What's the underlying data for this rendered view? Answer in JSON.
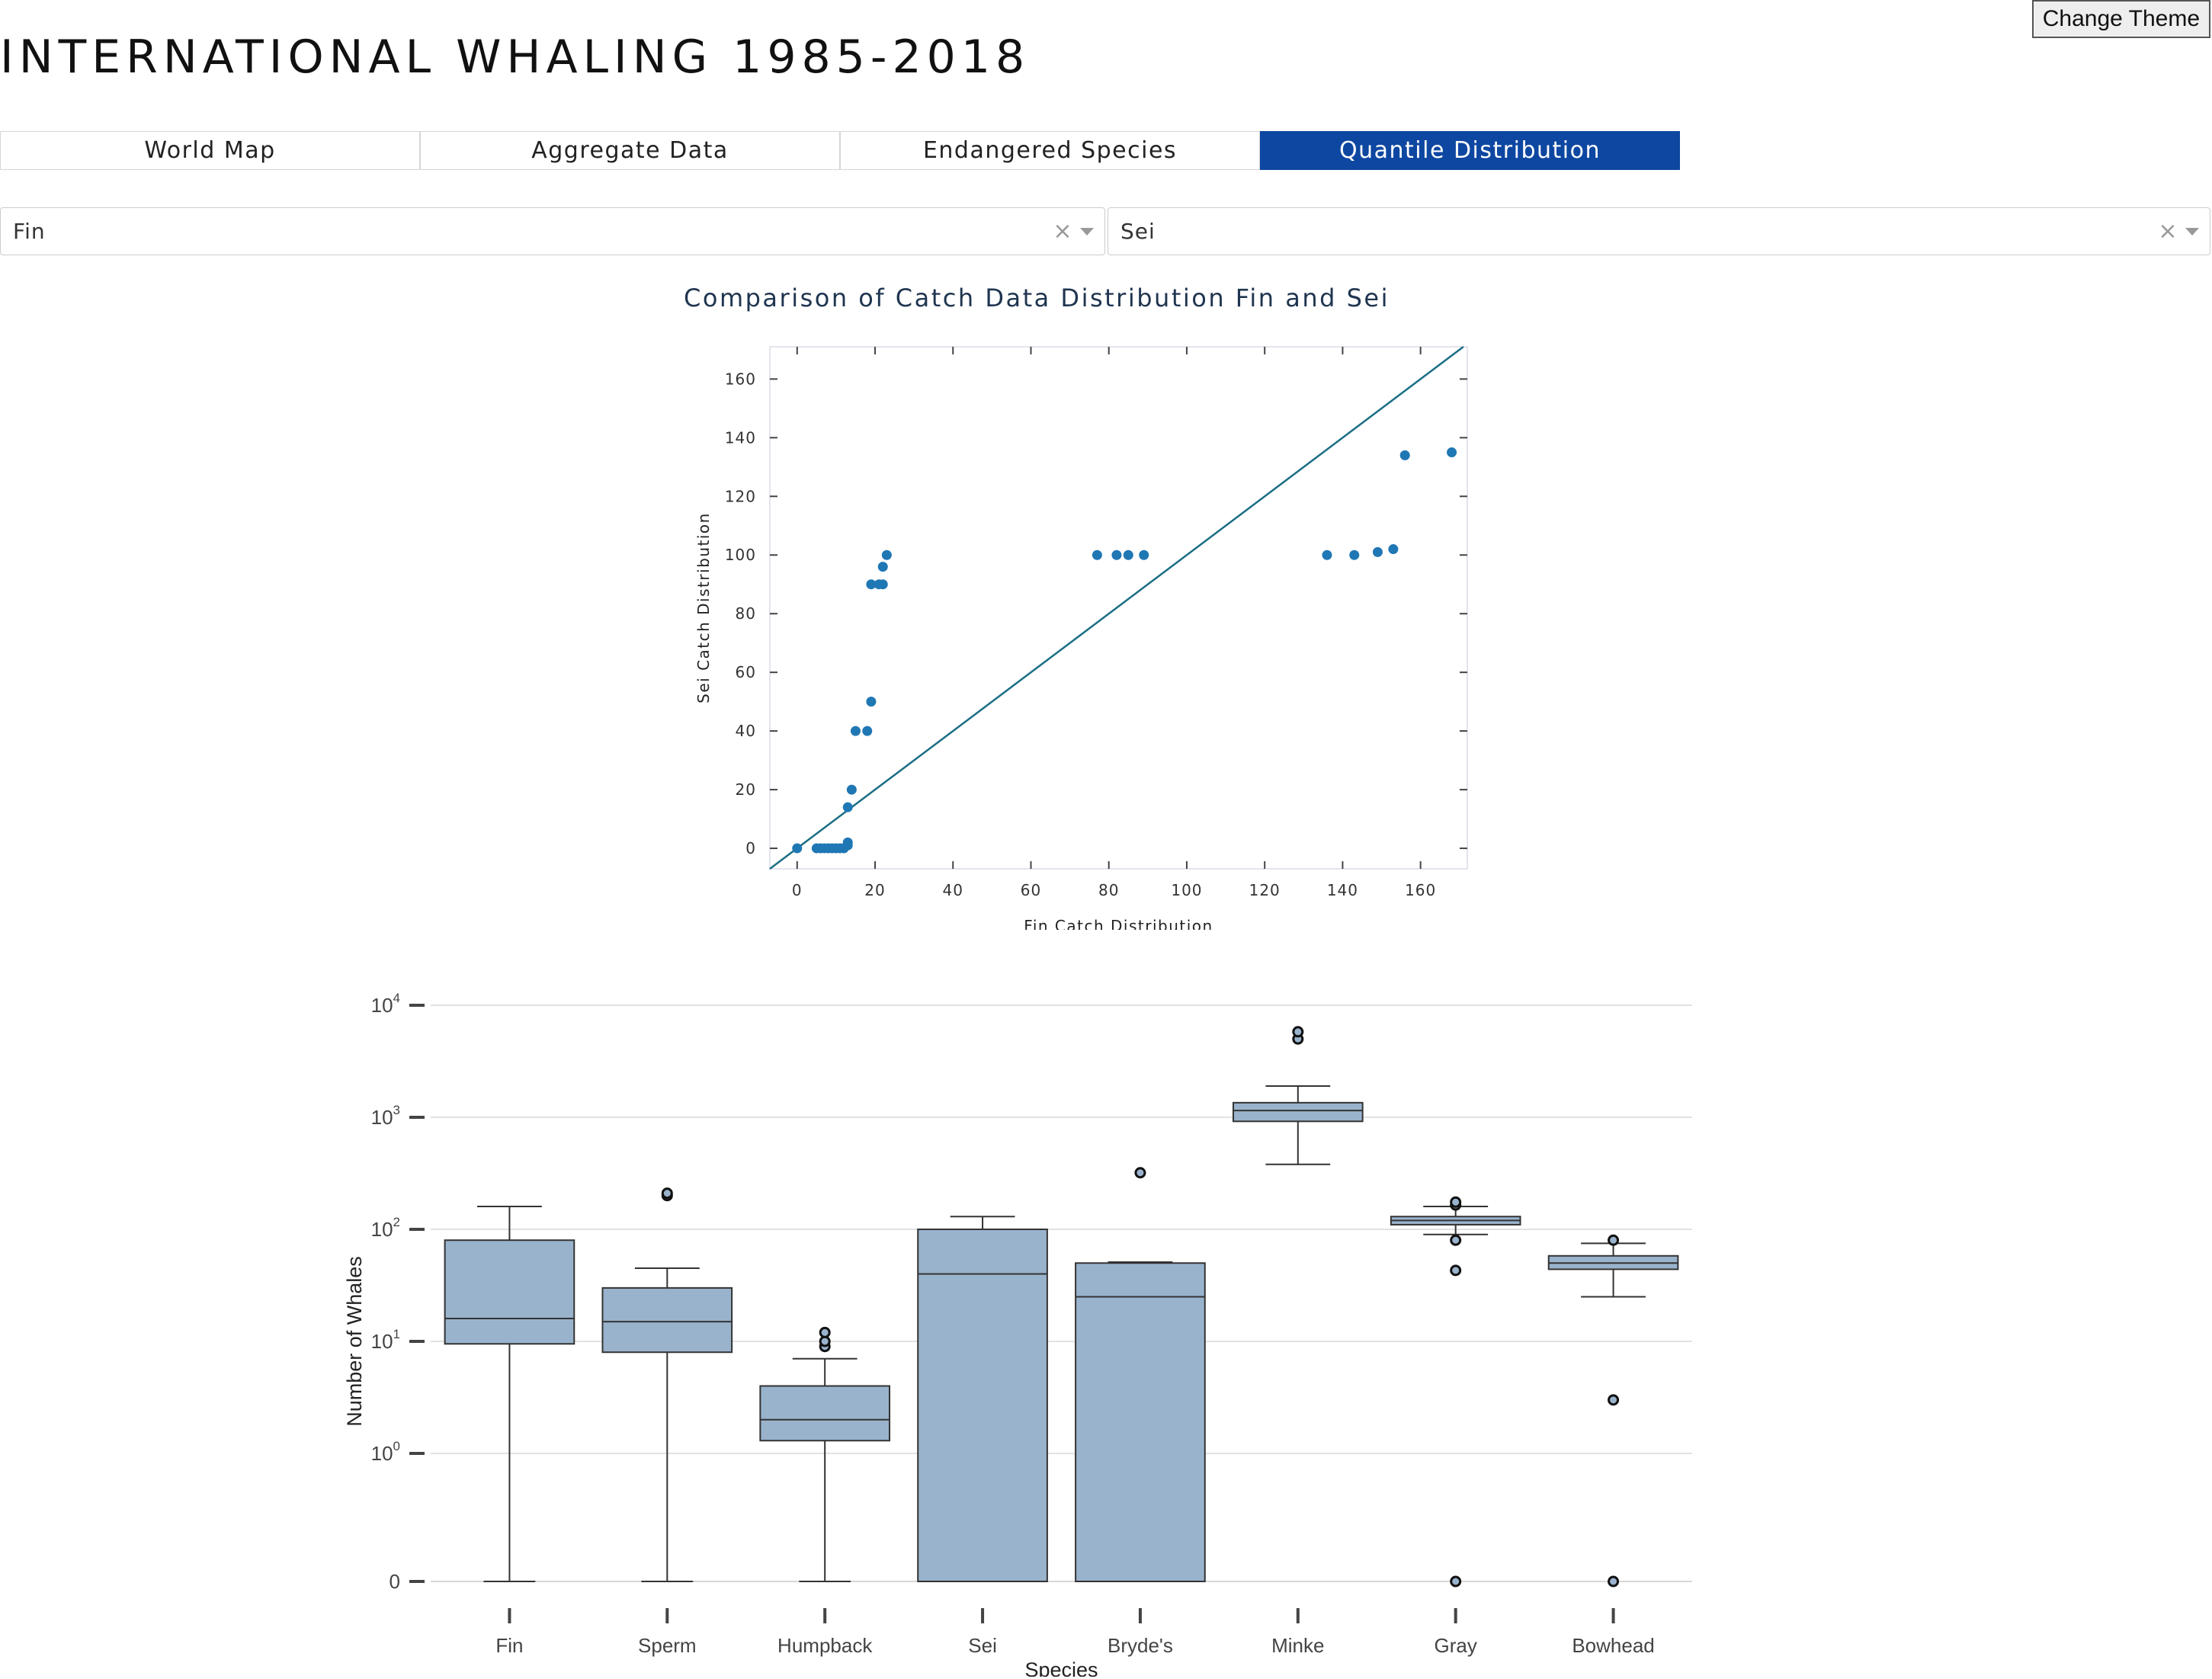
{
  "app": {
    "title": "INTERNATIONAL WHALING 1985-2018",
    "theme_button": "Change Theme"
  },
  "tabs": [
    {
      "label": "World Map",
      "active": false
    },
    {
      "label": "Aggregate Data",
      "active": false
    },
    {
      "label": "Endangered Species",
      "active": false
    },
    {
      "label": "Quantile Distribution",
      "active": true
    }
  ],
  "selectors": {
    "left": {
      "value": "Fin"
    },
    "right": {
      "value": "Sei"
    }
  },
  "colors": {
    "accent": "#0d47a1",
    "scatter_point": "#1f77b4",
    "ref_line": "#1a6e84",
    "box_fill": "#9ab3cd",
    "box_stroke": "#333333"
  },
  "chart_data": [
    {
      "type": "scatter",
      "title": "Comparison of Catch Data Distribution Fin and Sei",
      "xlabel": "Fin Catch Distribution",
      "ylabel": "Sei Catch Distribution",
      "xlim": [
        -7,
        172
      ],
      "ylim": [
        -7,
        171
      ],
      "xticks": [
        0,
        20,
        40,
        60,
        80,
        100,
        120,
        140,
        160
      ],
      "yticks": [
        0,
        20,
        40,
        60,
        80,
        100,
        120,
        140,
        160
      ],
      "reference_line": "y = x",
      "points": [
        [
          0,
          0
        ],
        [
          5,
          0
        ],
        [
          6,
          0
        ],
        [
          7,
          0
        ],
        [
          8,
          0
        ],
        [
          9,
          0
        ],
        [
          10,
          0
        ],
        [
          11,
          0
        ],
        [
          12,
          0
        ],
        [
          13,
          1
        ],
        [
          13,
          2
        ],
        [
          13,
          14
        ],
        [
          14,
          20
        ],
        [
          15,
          40
        ],
        [
          18,
          40
        ],
        [
          19,
          50
        ],
        [
          19,
          90
        ],
        [
          21,
          90
        ],
        [
          22,
          90
        ],
        [
          22,
          96
        ],
        [
          23,
          100
        ],
        [
          77,
          100
        ],
        [
          82,
          100
        ],
        [
          85,
          100
        ],
        [
          89,
          100
        ],
        [
          136,
          100
        ],
        [
          143,
          100
        ],
        [
          149,
          101
        ],
        [
          153,
          102
        ],
        [
          156,
          134
        ],
        [
          168,
          135
        ]
      ]
    },
    {
      "type": "box",
      "xlabel": "Species",
      "ylabel": "Number of Whales",
      "y_scale": "log (with 0 shown at bottom)",
      "yticks": [
        "0",
        "10^0",
        "10^1",
        "10^2",
        "10^3",
        "10^4"
      ],
      "series": [
        {
          "name": "Fin",
          "low": 0,
          "q1": 9.5,
          "median": 16,
          "q3": 80,
          "high": 160,
          "outliers": []
        },
        {
          "name": "Sperm",
          "low": 0,
          "q1": 8,
          "median": 15,
          "q3": 30,
          "high": 45,
          "outliers": [
            200,
            210
          ]
        },
        {
          "name": "Humpback",
          "low": 0,
          "q1": 1.3,
          "median": 2,
          "q3": 4,
          "high": 7,
          "outliers": [
            9,
            10,
            12
          ]
        },
        {
          "name": "Sei",
          "low": 0,
          "q1": 0,
          "median": 40,
          "q3": 100,
          "high": 130,
          "outliers": []
        },
        {
          "name": "Bryde's",
          "low": 0,
          "q1": 0,
          "median": 25,
          "q3": 50,
          "high": 51,
          "outliers": [
            320
          ]
        },
        {
          "name": "Minke",
          "low": 380,
          "q1": 920,
          "median": 1150,
          "q3": 1350,
          "high": 1900,
          "outliers": [
            5000,
            5800
          ]
        },
        {
          "name": "Gray",
          "low": 90,
          "q1": 110,
          "median": 120,
          "q3": 130,
          "high": 160,
          "outliers": [
            0,
            43,
            80,
            165,
            175
          ]
        },
        {
          "name": "Bowhead",
          "low": 25,
          "q1": 44,
          "median": 50,
          "q3": 58,
          "high": 75,
          "outliers": [
            0,
            3,
            80
          ]
        }
      ]
    }
  ]
}
